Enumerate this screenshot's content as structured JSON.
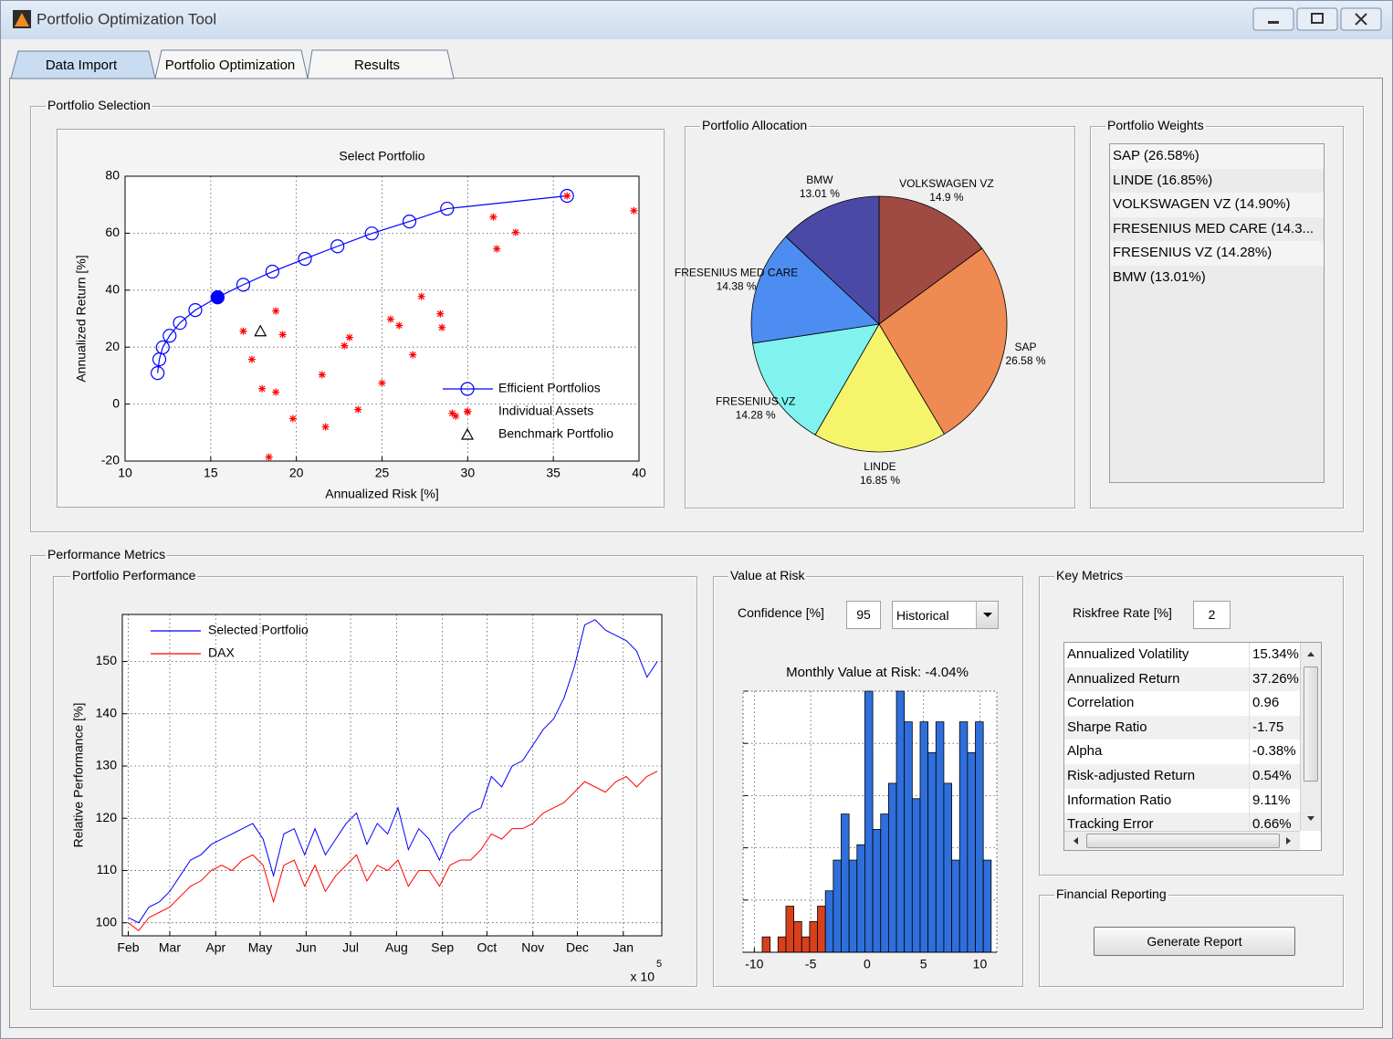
{
  "window": {
    "title": "Portfolio Optimization Tool"
  },
  "tabs": [
    "Data Import",
    "Portfolio Optimization",
    "Results"
  ],
  "panels": {
    "portfolio_selection": "Portfolio Selection",
    "portfolio_allocation": "Portfolio Allocation",
    "portfolio_weights": "Portfolio Weights",
    "performance_metrics": "Performance Metrics",
    "portfolio_performance": "Portfolio Performance",
    "value_at_risk": "Value at Risk",
    "key_metrics": "Key Metrics",
    "financial_reporting": "Financial Reporting"
  },
  "portfolio_weights": [
    "SAP  (26.58%)",
    "LINDE  (16.85%)",
    "VOLKSWAGEN VZ  (14.90%)",
    "FRESENIUS MED CARE  (14.3...",
    "FRESENIUS VZ  (14.28%)",
    "BMW  (13.01%)"
  ],
  "value_at_risk": {
    "confidence_label": "Confidence [%]",
    "confidence": "95",
    "method": "Historical"
  },
  "key_metrics": {
    "riskfree_label": "Riskfree Rate [%]",
    "riskfree": "2",
    "rows": [
      [
        "Annualized Volatility",
        "15.34%"
      ],
      [
        "Annualized Return",
        "37.26%"
      ],
      [
        "Correlation",
        "0.96"
      ],
      [
        "Sharpe Ratio",
        "-1.75"
      ],
      [
        "Alpha",
        "-0.38%"
      ],
      [
        "Risk-adjusted Return",
        "0.54%"
      ],
      [
        "Information Ratio",
        "9.11%"
      ],
      [
        "Tracking Error",
        "0.66%"
      ]
    ]
  },
  "financial_reporting": {
    "button": "Generate Report"
  },
  "chart_data": [
    {
      "type": "scatter",
      "title": "Select Portfolio",
      "xlabel": "Annualized Risk [%]",
      "ylabel": "Annualized Return [%]",
      "xlim": [
        10,
        40
      ],
      "ylim": [
        -20,
        80
      ],
      "xticks": [
        10,
        15,
        20,
        25,
        30,
        35,
        40
      ],
      "yticks": [
        -20,
        0,
        20,
        40,
        60,
        80
      ],
      "grid": true,
      "legend": "lower right",
      "series": [
        {
          "name": "Efficient Portfolios",
          "color": "#0000ff",
          "marker": "circle",
          "line": true,
          "x": [
            11.9,
            12.0,
            12.2,
            12.6,
            13.2,
            14.1,
            15.4,
            16.9,
            18.6,
            20.5,
            22.4,
            24.4,
            26.6,
            28.8,
            35.8
          ],
          "values": [
            10.9,
            15.7,
            19.9,
            24.0,
            28.5,
            33.0,
            37.5,
            41.9,
            46.5,
            51.0,
            55.4,
            59.9,
            64.1,
            68.6,
            73.1
          ]
        },
        {
          "name": "Individual Assets",
          "color": "#ff0000",
          "marker": "star",
          "line": false,
          "x": [
            39.7,
            31.5,
            31.7,
            32.8,
            16.9,
            18.8,
            19.2,
            17.4,
            18.0,
            18.8,
            19.8,
            21.5,
            21.7,
            22.8,
            23.1,
            23.6,
            25.0,
            25.5,
            26.0,
            27.3,
            26.8,
            28.4,
            28.5,
            29.1,
            29.3,
            30.0,
            18.4,
            35.8
          ],
          "values": [
            67.9,
            65.7,
            54.5,
            60.3,
            25.6,
            32.7,
            24.4,
            15.7,
            5.4,
            4.2,
            -5.1,
            10.3,
            -8.0,
            20.5,
            23.4,
            -1.9,
            7.4,
            29.8,
            27.6,
            37.8,
            17.3,
            31.7,
            26.9,
            -3.2,
            -4.2,
            -2.6,
            -18.6,
            73.1
          ]
        },
        {
          "name": "Benchmark Portfolio",
          "color": "#000000",
          "marker": "triangle",
          "line": false,
          "x": [
            17.9
          ],
          "values": [
            25.6
          ]
        }
      ],
      "selected": {
        "x": 15.4,
        "y": 37.5,
        "color": "#0000ff"
      }
    },
    {
      "type": "pie",
      "labels": [
        "VOLKSWAGEN VZ",
        "SAP",
        "LINDE",
        "FRESENIUS VZ",
        "FRESENIUS MED CARE",
        "BMW"
      ],
      "values": [
        14.9,
        26.58,
        16.85,
        14.28,
        14.38,
        13.01
      ],
      "value_labels": [
        "14.9 %",
        "26.58 %",
        "16.85 %",
        "14.28 %",
        "14.38 %",
        "13.01 %"
      ],
      "colors": [
        "#9f4b43",
        "#ef8a52",
        "#f5f46b",
        "#80f3ef",
        "#4d8df2",
        "#4a4aa6"
      ]
    },
    {
      "type": "line",
      "ylabel": "Relative Performance [%]",
      "xlim": [
        -4,
        360
      ],
      "ylim": [
        97.5,
        159
      ],
      "xticks": [
        {
          "value": 0,
          "label": "Feb"
        },
        {
          "value": 28,
          "label": "Mar"
        },
        {
          "value": 59,
          "label": "Apr"
        },
        {
          "value": 89,
          "label": "May"
        },
        {
          "value": 120,
          "label": "Jun"
        },
        {
          "value": 150,
          "label": "Jul"
        },
        {
          "value": 181,
          "label": "Aug"
        },
        {
          "value": 212,
          "label": "Sep"
        },
        {
          "value": 242,
          "label": "Oct"
        },
        {
          "value": 273,
          "label": "Nov"
        },
        {
          "value": 303,
          "label": "Dec"
        },
        {
          "value": 334,
          "label": "Jan"
        }
      ],
      "yticks": [
        100,
        110,
        120,
        130,
        140,
        150
      ],
      "x_exponent": {
        "base": "x 10",
        "power": "5"
      },
      "grid": true,
      "legend": "upper left",
      "x": [
        0,
        7,
        14,
        21,
        28,
        35,
        42,
        49,
        56,
        63,
        70,
        77,
        84,
        91,
        98,
        105,
        112,
        119,
        126,
        133,
        140,
        147,
        154,
        161,
        168,
        175,
        182,
        189,
        196,
        203,
        210,
        217,
        224,
        231,
        238,
        245,
        252,
        259,
        266,
        273,
        280,
        287,
        294,
        301,
        308,
        315,
        322,
        329,
        336,
        343,
        350,
        357
      ],
      "series": [
        {
          "name": "Selected Portfolio",
          "color": "#0000ff",
          "values": [
            101,
            100,
            103,
            104,
            106,
            109,
            112,
            113,
            115,
            116,
            117,
            118,
            119,
            116,
            109,
            117,
            118,
            113,
            118,
            113,
            116,
            119,
            121,
            115,
            119,
            117,
            122,
            114,
            118,
            116,
            112,
            117,
            119,
            121,
            122,
            128,
            126,
            130,
            131,
            134,
            137,
            139,
            143,
            149,
            157,
            158,
            156,
            155,
            154,
            152,
            147,
            150
          ]
        },
        {
          "name": "DAX",
          "color": "#ff0000",
          "values": [
            100,
            98.5,
            101,
            102,
            103,
            105,
            107,
            108,
            110,
            111,
            110,
            112,
            113,
            111,
            104,
            111,
            112,
            107,
            111,
            106,
            109,
            111,
            113,
            108,
            111,
            110,
            112,
            107,
            110,
            110,
            107,
            111,
            112,
            112,
            114,
            117,
            116,
            118,
            118,
            119,
            121,
            122,
            123,
            125,
            127,
            126,
            125,
            127,
            128,
            126,
            128,
            129
          ]
        }
      ]
    },
    {
      "type": "histogram",
      "title": "Monthly Value at Risk: -4.04%",
      "bins": [
        -9.3,
        -8.6,
        -7.9,
        -7.2,
        -6.5,
        -5.8,
        -5.1,
        -4.4,
        -3.7,
        -3.0,
        -2.3,
        -1.6,
        -0.9,
        -0.2,
        0.5,
        1.2,
        1.9,
        2.6,
        3.3,
        4.0,
        4.7,
        5.4,
        6.1,
        6.8,
        7.5,
        8.2,
        8.9,
        9.6,
        10.3,
        11.0
      ],
      "counts": [
        1,
        0,
        1,
        3,
        2,
        1,
        2,
        3,
        4,
        6,
        9,
        6,
        7,
        17,
        8,
        9,
        11,
        17,
        15,
        10,
        15,
        13,
        15,
        11,
        6,
        15,
        13,
        15,
        6
      ],
      "threshold": -4.04,
      "color": "#2f6fdc",
      "below_color": "#d8401c",
      "xlim": [
        -11,
        11.5
      ],
      "ylim": [
        0,
        17
      ],
      "xticks": [
        -10,
        -5,
        0,
        5,
        10
      ],
      "yticks": [
        0,
        3.4,
        6.8,
        10.2,
        13.6,
        17
      ],
      "ytick_labels": false,
      "grid": true
    }
  ]
}
